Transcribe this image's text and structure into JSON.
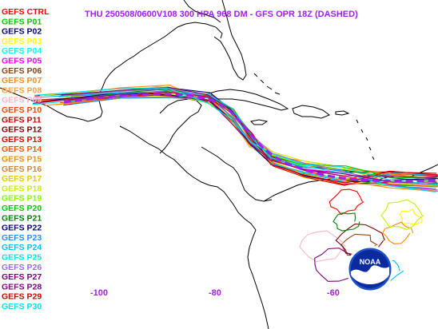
{
  "title": "THU 250508/0600V108  300 HPA 968 DM - GFS OPR 18Z (DASHED)",
  "logo_text": "NOAA",
  "colors": {
    "title": "#a020f0",
    "operational": "#a020f0",
    "land": "#000000"
  },
  "longitude_labels": [
    "-100",
    "-80",
    "-60"
  ],
  "legend": [
    {
      "label": "GEFS CTRL",
      "color": "#ff0000"
    },
    {
      "label": "GEFS P01",
      "color": "#00c800"
    },
    {
      "label": "GEFS P02",
      "color": "#000080"
    },
    {
      "label": "GEFS P03",
      "color": "#ffff00"
    },
    {
      "label": "GEFS P04",
      "color": "#00ffff"
    },
    {
      "label": "GEFS P05",
      "color": "#ff00ff"
    },
    {
      "label": "GEFS P06",
      "color": "#8b4513"
    },
    {
      "label": "GEFS P07",
      "color": "#ff8c1a"
    },
    {
      "label": "GEFS P08",
      "color": "#ffa040"
    },
    {
      "label": "GEFS P09",
      "color": "#ffb6c1"
    },
    {
      "label": "GEFS P10",
      "color": "#ff4500"
    },
    {
      "label": "GEFS P11",
      "color": "#cc0000"
    },
    {
      "label": "GEFS P12",
      "color": "#800000"
    },
    {
      "label": "GEFS P13",
      "color": "#e00000"
    },
    {
      "label": "GEFS P14",
      "color": "#ff5500"
    },
    {
      "label": "GEFS P15",
      "color": "#ff8c00"
    },
    {
      "label": "GEFS P16",
      "color": "#cd853f"
    },
    {
      "label": "GEFS P17",
      "color": "#f0c800"
    },
    {
      "label": "GEFS P18",
      "color": "#c8f000"
    },
    {
      "label": "GEFS P19",
      "color": "#80ff00"
    },
    {
      "label": "GEFS P20",
      "color": "#00cc00"
    },
    {
      "label": "GEFS P21",
      "color": "#008000"
    },
    {
      "label": "GEFS P22",
      "color": "#000080"
    },
    {
      "label": "GEFS P23",
      "color": "#1e90ff"
    },
    {
      "label": "GEFS P24",
      "color": "#00bfff"
    },
    {
      "label": "GEFS P25",
      "color": "#00e5ee"
    },
    {
      "label": "GEFS P26",
      "color": "#9370db"
    },
    {
      "label": "GEFS P27",
      "color": "#800080"
    },
    {
      "label": "GEFS P28",
      "color": "#8b008b"
    },
    {
      "label": "GEFS P29",
      "color": "#d00000"
    },
    {
      "label": "GEFS P30",
      "color": "#00e5ee"
    }
  ]
}
